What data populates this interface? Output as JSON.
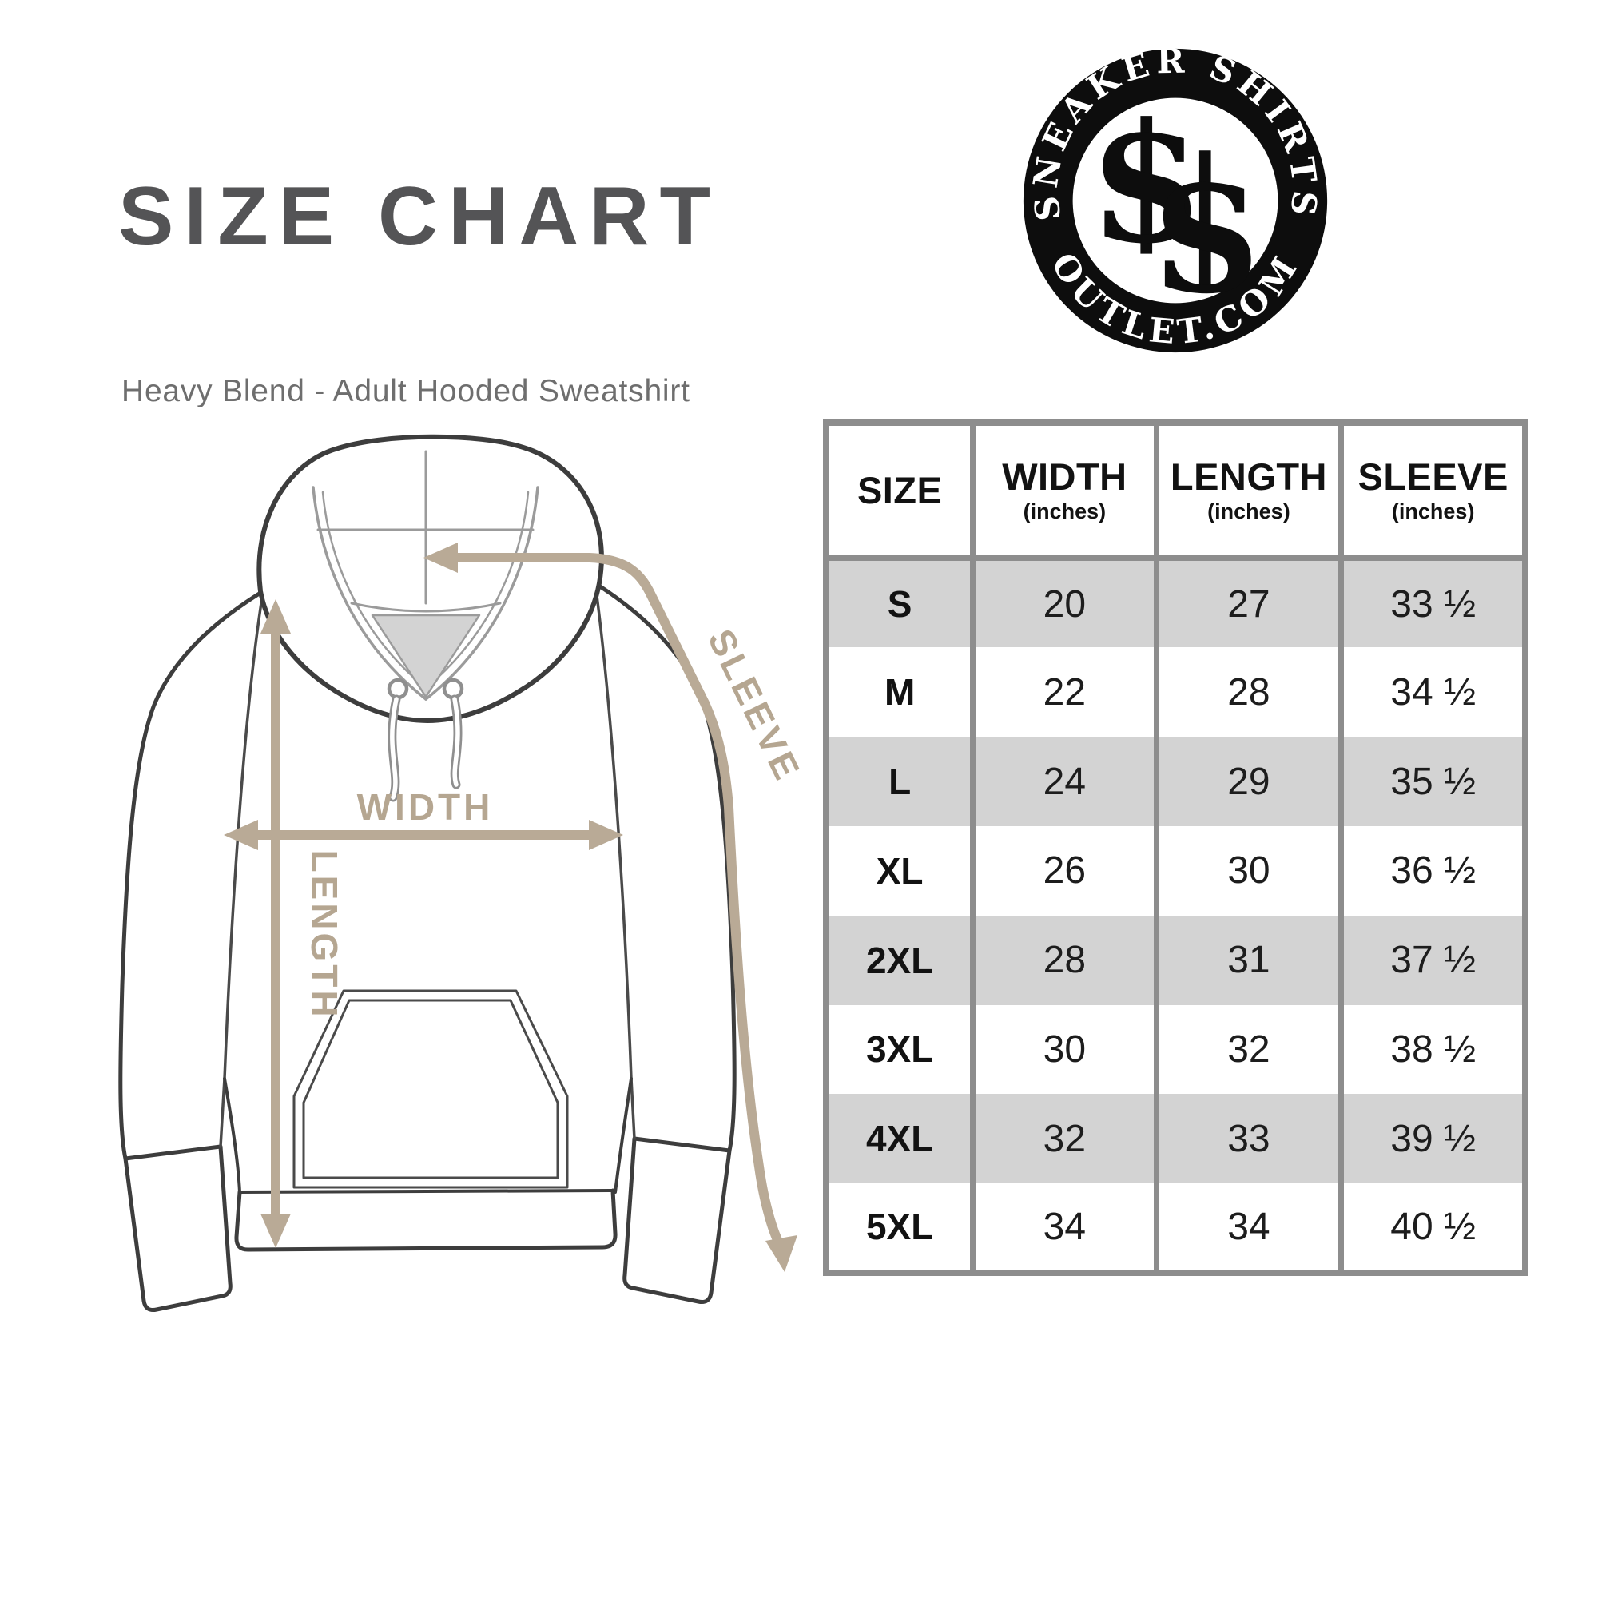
{
  "title": "SIZE CHART",
  "subtitle": "Heavy Blend - Adult Hooded Sweatshirt",
  "logo": {
    "arc_top": "SNEAKER SHIRTS",
    "arc_bottom": "OUTLET.COM",
    "monogram_left": "S",
    "monogram_right": "S"
  },
  "diagram": {
    "width_label": "WIDTH",
    "length_label": "LENGTH",
    "sleeve_label": "SLEEVE",
    "arrow_color": "#b9aa96"
  },
  "table": {
    "columns": [
      {
        "label": "SIZE",
        "unit": ""
      },
      {
        "label": "WIDTH",
        "unit": "(inches)"
      },
      {
        "label": "LENGTH",
        "unit": "(inches)"
      },
      {
        "label": "SLEEVE",
        "unit": "(inches)"
      }
    ],
    "rows": [
      {
        "size": "S",
        "width": "20",
        "length": "27",
        "sleeve": "33 ½"
      },
      {
        "size": "M",
        "width": "22",
        "length": "28",
        "sleeve": "34 ½"
      },
      {
        "size": "L",
        "width": "24",
        "length": "29",
        "sleeve": "35 ½"
      },
      {
        "size": "XL",
        "width": "26",
        "length": "30",
        "sleeve": "36 ½"
      },
      {
        "size": "2XL",
        "width": "28",
        "length": "31",
        "sleeve": "37 ½"
      },
      {
        "size": "3XL",
        "width": "30",
        "length": "32",
        "sleeve": "38 ½"
      },
      {
        "size": "4XL",
        "width": "32",
        "length": "33",
        "sleeve": "39 ½"
      },
      {
        "size": "5XL",
        "width": "34",
        "length": "34",
        "sleeve": "40 ½"
      }
    ],
    "row_shade_color": "#d3d3d3",
    "border_color": "#8d8d8d"
  },
  "colors": {
    "title_text": "#545456",
    "subtitle_text": "#6e6e6e",
    "outline_dark": "#3d3d3d",
    "thin_line": "#9b9b9b",
    "arrow_tan": "#b9aa96",
    "logo_black": "#0d0d0d"
  }
}
